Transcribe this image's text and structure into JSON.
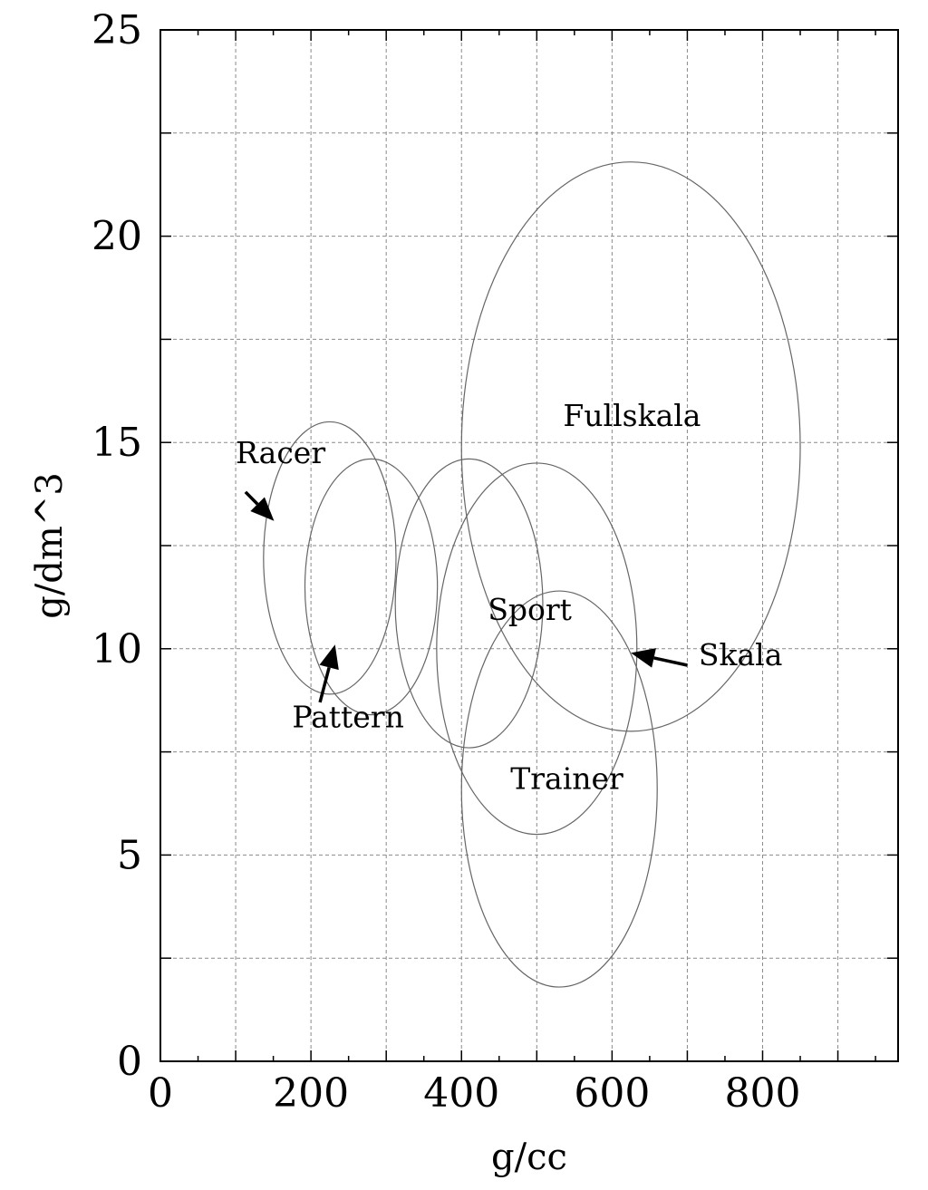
{
  "chart_data": {
    "type": "scatter",
    "title": "",
    "xlabel": "g/cc",
    "ylabel": "g/dm^3",
    "xlim": [
      0,
      980
    ],
    "ylim": [
      0,
      25
    ],
    "x_ticks": [
      0,
      200,
      400,
      600,
      800
    ],
    "y_ticks": [
      0,
      5,
      10,
      15,
      20,
      25
    ],
    "x_grid": [
      100,
      200,
      300,
      400,
      500,
      600,
      700,
      800,
      900
    ],
    "y_grid": [
      2.5,
      5,
      7.5,
      10,
      12.5,
      15,
      17.5,
      20,
      22.5
    ],
    "grid": true,
    "regions": [
      {
        "name": "Racer",
        "cx": 225,
        "cy": 12.2,
        "rx": 88,
        "ry": 3.3
      },
      {
        "name": "Pattern",
        "cx": 280,
        "cy": 11.5,
        "rx": 88,
        "ry": 3.1
      },
      {
        "name": "Sport",
        "cx": 410,
        "cy": 11.1,
        "rx": 98,
        "ry": 3.5
      },
      {
        "name": "Skala",
        "cx": 500,
        "cy": 10.0,
        "rx": 133,
        "ry": 4.5
      },
      {
        "name": "Fullskala",
        "cx": 625,
        "cy": 14.9,
        "rx": 225,
        "ry": 6.9
      },
      {
        "name": "Trainer",
        "cx": 530,
        "cy": 6.6,
        "rx": 130,
        "ry": 4.8
      }
    ],
    "labels": [
      {
        "text": "Racer",
        "x": 100,
        "y": 14.5
      },
      {
        "text": "Pattern",
        "x": 175,
        "y": 8.1
      },
      {
        "text": "Sport",
        "x": 435,
        "y": 10.7
      },
      {
        "text": "Skala",
        "x": 715,
        "y": 9.6
      },
      {
        "text": "Fullskala",
        "x": 535,
        "y": 15.4
      },
      {
        "text": "Trainer",
        "x": 465,
        "y": 6.6
      }
    ],
    "arrows": [
      {
        "label": "Racer",
        "from": [
          113,
          13.8
        ],
        "to": [
          151,
          13.1
        ]
      },
      {
        "label": "Pattern",
        "from": [
          212,
          8.7
        ],
        "to": [
          232,
          10.1
        ]
      },
      {
        "label": "Skala",
        "from": [
          700,
          9.6
        ],
        "to": [
          625,
          9.9
        ]
      }
    ]
  }
}
